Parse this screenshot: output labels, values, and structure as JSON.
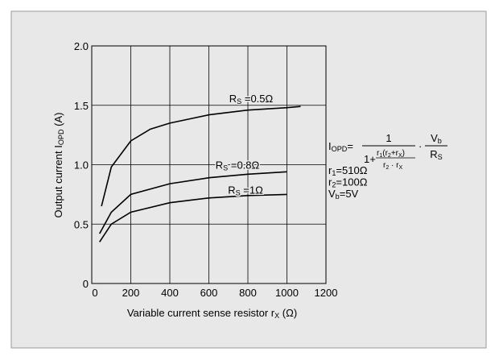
{
  "chart_data": {
    "type": "line",
    "x_label": [
      "Variable current sense resistor r",
      "X",
      " (Ω)"
    ],
    "y_label": [
      "Output current I",
      "OPD",
      " (A)"
    ],
    "xlim": [
      0,
      1200
    ],
    "xticks": [
      0,
      200,
      400,
      600,
      800,
      1000,
      1200
    ],
    "ylim": [
      0,
      2
    ],
    "yticks": [
      0,
      0.5,
      {
        "value": 1,
        "label": "1.0"
      },
      1.5,
      {
        "value": 2,
        "label": "2.0"
      }
    ],
    "grid": true,
    "series": [
      {
        "name": [
          "R",
          "S",
          " =0.5Ω"
        ],
        "color": "#000000",
        "x": [
          50,
          100,
          200,
          300,
          400,
          600,
          800,
          1000,
          1070
        ],
        "values": [
          0.65,
          0.98,
          1.2,
          1.3,
          1.35,
          1.42,
          1.46,
          1.48,
          1.49
        ]
      },
      {
        "name": [
          "R",
          "S",
          " =0.8Ω"
        ],
        "color": "#000000",
        "x": [
          40,
          100,
          200,
          400,
          600,
          800,
          1000
        ],
        "values": [
          0.42,
          0.6,
          0.75,
          0.84,
          0.89,
          0.92,
          0.94
        ]
      },
      {
        "name": [
          "R",
          "S",
          " =1Ω"
        ],
        "color": "#000000",
        "x": [
          40,
          100,
          200,
          400,
          600,
          800,
          1000
        ],
        "values": [
          0.35,
          0.5,
          0.6,
          0.68,
          0.72,
          0.74,
          0.75
        ]
      }
    ],
    "formula": {
      "lhs": [
        "I",
        "OPD",
        "="
      ],
      "numerator": "1",
      "denominator_lead": "1+",
      "inner_numerator": [
        "r",
        "1",
        "(r",
        "2",
        "+r",
        "X",
        ")"
      ],
      "inner_denominator": [
        "r",
        "2",
        " · r",
        "X"
      ],
      "dot": "·",
      "vb": [
        "V",
        "b"
      ],
      "rs": [
        "R",
        "S"
      ]
    },
    "constants": [
      [
        "r",
        "1",
        "=510Ω"
      ],
      [
        "r",
        "2",
        "=100Ω"
      ],
      [
        "V",
        "b",
        "=5V"
      ]
    ]
  }
}
